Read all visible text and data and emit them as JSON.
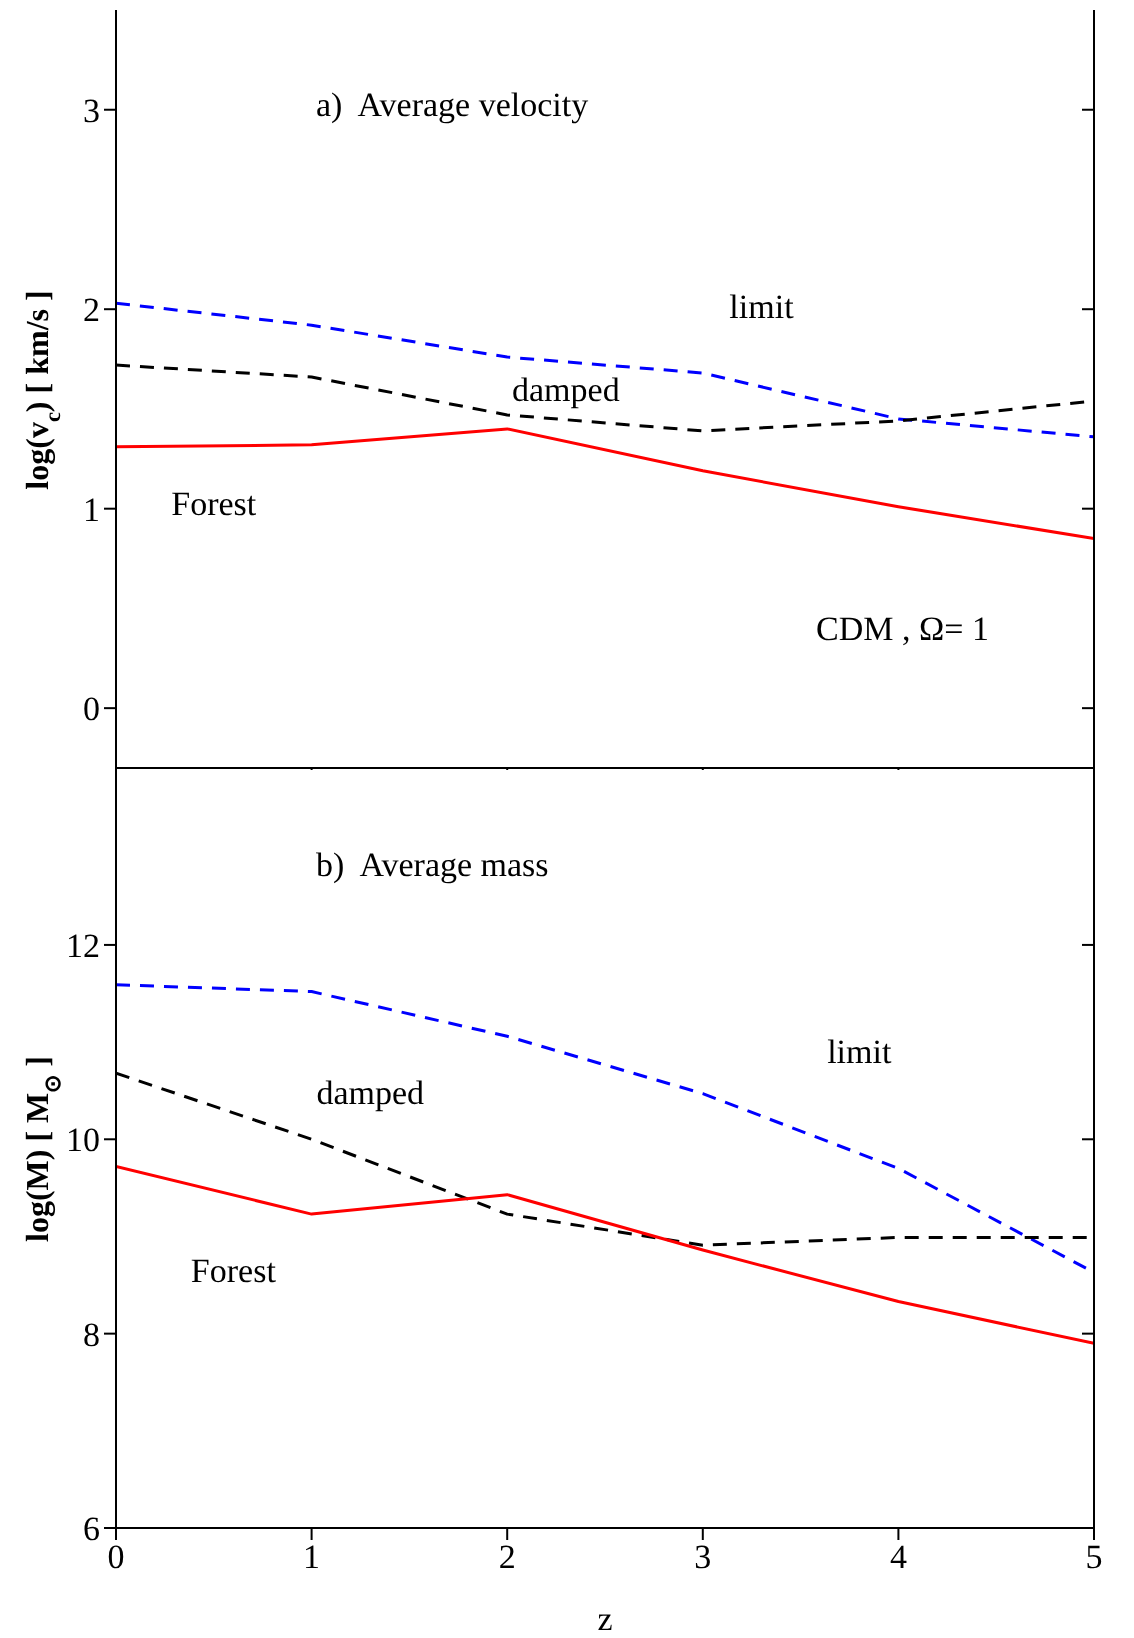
{
  "chart_data": [
    {
      "type": "line",
      "title": "a)  Average velocity",
      "ylabel": "log(v$_{c}$)  [ km/s ]",
      "annotations": [
        "CDM , Ω= 1"
      ],
      "x": [
        0,
        1,
        2,
        3,
        4,
        5
      ],
      "xlim": [
        0,
        5
      ],
      "xticks": [
        0,
        1,
        2,
        3,
        4,
        5
      ],
      "ylim": [
        -0.3,
        3.5
      ],
      "yticks": [
        0,
        1,
        2,
        3
      ],
      "tick_labels": "y",
      "legend": false,
      "grid": false,
      "marker": "none",
      "series": [
        {
          "name": "limit",
          "color": "#0000ff",
          "line_style": "dashed",
          "values": [
            2.03,
            1.92,
            1.76,
            1.68,
            1.45,
            1.36
          ]
        },
        {
          "name": "damped",
          "color": "#000000",
          "line_style": "dashed",
          "values": [
            1.72,
            1.66,
            1.47,
            1.39,
            1.44,
            1.54
          ]
        },
        {
          "name": "Forest",
          "color": "#ff0000",
          "line_style": "solid",
          "values": [
            1.31,
            1.32,
            1.4,
            1.19,
            1.01,
            0.85
          ]
        }
      ]
    },
    {
      "type": "line",
      "title": "b)  Average mass",
      "xlabel": "z",
      "ylabel": "log(M)  [ M$_{⊙}$ ]",
      "x": [
        0,
        1,
        2,
        3,
        4,
        5
      ],
      "xlim": [
        0,
        5
      ],
      "xticks": [
        0,
        1,
        2,
        3,
        4,
        5
      ],
      "ylim": [
        6,
        13.8
      ],
      "yticks": [
        6,
        8,
        10,
        12
      ],
      "legend": false,
      "grid": false,
      "marker": "none",
      "series": [
        {
          "name": "limit",
          "color": "#0000ff",
          "line_style": "dashed",
          "values": [
            11.59,
            11.52,
            11.06,
            10.47,
            9.7,
            8.63
          ]
        },
        {
          "name": "damped",
          "color": "#000000",
          "line_style": "dashed",
          "values": [
            10.68,
            10.0,
            9.23,
            8.91,
            8.99,
            8.99
          ]
        },
        {
          "name": "Forest",
          "color": "#ff0000",
          "line_style": "solid",
          "values": [
            9.72,
            9.23,
            9.43,
            8.86,
            8.33,
            7.9
          ]
        }
      ]
    }
  ]
}
